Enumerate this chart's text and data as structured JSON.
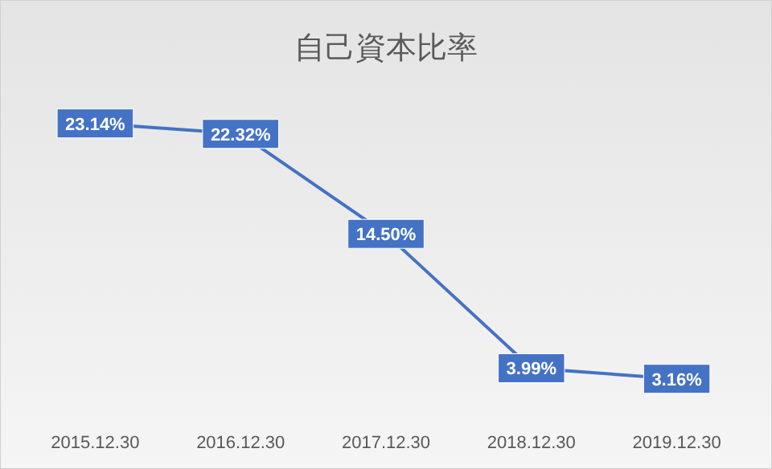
{
  "chart_data": {
    "type": "line",
    "title": "自己資本比率",
    "categories": [
      "2015.12.30",
      "2016.12.30",
      "2017.12.30",
      "2018.12.30",
      "2019.12.30"
    ],
    "series": [
      {
        "color": "#4472c4",
        "values": [
          23.14,
          22.32,
          14.5,
          3.99,
          3.16
        ],
        "value_labels": [
          "23.14%",
          "22.32%",
          "14.50%",
          "3.99%",
          "3.16%"
        ]
      }
    ]
  }
}
